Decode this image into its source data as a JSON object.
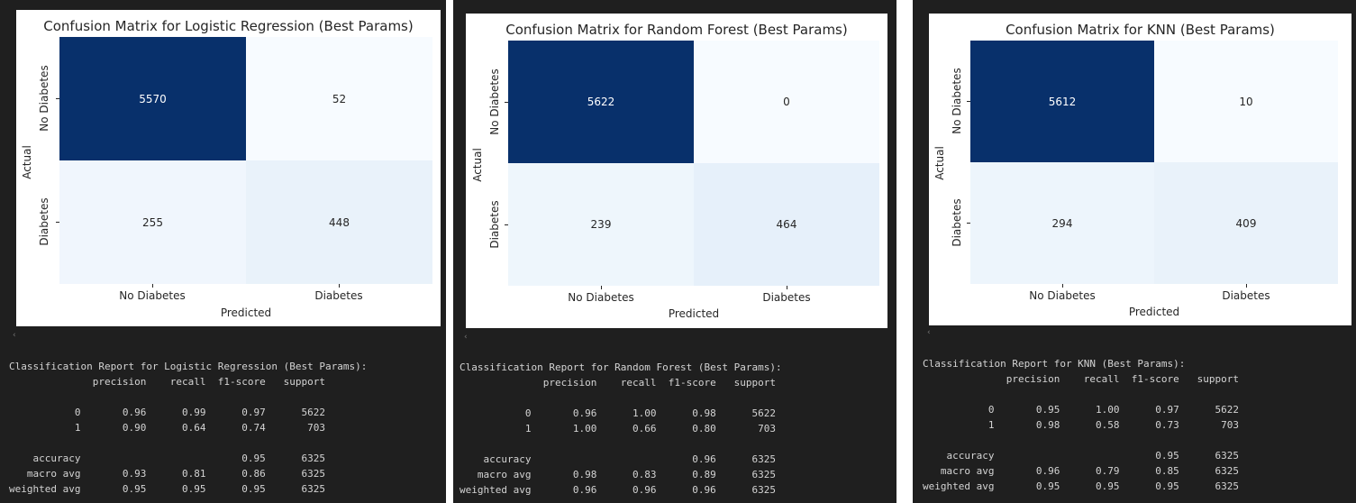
{
  "panels": [
    {
      "title": "Confusion Matrix for Logistic Regression (Best Params)",
      "xlabel": "Predicted",
      "ylabel": "Actual",
      "labels": [
        "No Diabetes",
        "Diabetes"
      ],
      "matrix": [
        [
          "5570",
          "52"
        ],
        [
          "255",
          "448"
        ]
      ],
      "report": {
        "header": "Classification Report for Logistic Regression (Best Params):",
        "columns": "              precision    recall  f1-score   support",
        "row0": "           0       0.96      0.99      0.97      5622",
        "row1": "           1       0.90      0.64      0.74       703",
        "accuracy": "    accuracy                           0.95      6325",
        "macro": "   macro avg       0.93      0.81      0.86      6325",
        "weighted": "weighted avg       0.95      0.95      0.95      6325"
      }
    },
    {
      "title": "Confusion Matrix for Random Forest (Best Params)",
      "xlabel": "Predicted",
      "ylabel": "Actual",
      "labels": [
        "No Diabetes",
        "Diabetes"
      ],
      "matrix": [
        [
          "5622",
          "0"
        ],
        [
          "239",
          "464"
        ]
      ],
      "report": {
        "header": "Classification Report for Random Forest (Best Params):",
        "columns": "              precision    recall  f1-score   support",
        "row0": "           0       0.96      1.00      0.98      5622",
        "row1": "           1       1.00      0.66      0.80       703",
        "accuracy": "    accuracy                           0.96      6325",
        "macro": "   macro avg       0.98      0.83      0.89      6325",
        "weighted": "weighted avg       0.96      0.96      0.96      6325"
      }
    },
    {
      "title": "Confusion Matrix for KNN (Best Params)",
      "xlabel": "Predicted",
      "ylabel": "Actual",
      "labels": [
        "No Diabetes",
        "Diabetes"
      ],
      "matrix": [
        [
          "5612",
          "10"
        ],
        [
          "294",
          "409"
        ]
      ],
      "report": {
        "header": "Classification Report for KNN (Best Params):",
        "columns": "              precision    recall  f1-score   support",
        "row0": "           0       0.95      1.00      0.97      5622",
        "row1": "           1       0.98      0.58      0.73       703",
        "accuracy": "    accuracy                           0.95      6325",
        "macro": "   macro avg       0.96      0.79      0.85      6325",
        "weighted": "weighted avg       0.95      0.95      0.95      6325"
      }
    }
  ],
  "scroll_indicator": "‹",
  "colors": {
    "panel_bg": "#1f1f1f",
    "high": "#08306b",
    "low": "#f7fbff",
    "text_dark": "#262626",
    "text_light": "#ffffff"
  },
  "chart_data": [
    {
      "type": "heatmap",
      "title": "Confusion Matrix for Logistic Regression (Best Params)",
      "xlabel": "Predicted",
      "ylabel": "Actual",
      "x": [
        "No Diabetes",
        "Diabetes"
      ],
      "y": [
        "No Diabetes",
        "Diabetes"
      ],
      "values": [
        [
          5570,
          52
        ],
        [
          255,
          448
        ]
      ]
    },
    {
      "type": "heatmap",
      "title": "Confusion Matrix for Random Forest (Best Params)",
      "xlabel": "Predicted",
      "ylabel": "Actual",
      "x": [
        "No Diabetes",
        "Diabetes"
      ],
      "y": [
        "No Diabetes",
        "Diabetes"
      ],
      "values": [
        [
          5622,
          0
        ],
        [
          239,
          464
        ]
      ]
    },
    {
      "type": "heatmap",
      "title": "Confusion Matrix for KNN (Best Params)",
      "xlabel": "Predicted",
      "ylabel": "Actual",
      "x": [
        "No Diabetes",
        "Diabetes"
      ],
      "y": [
        "No Diabetes",
        "Diabetes"
      ],
      "values": [
        [
          5612,
          10
        ],
        [
          294,
          409
        ]
      ]
    }
  ]
}
